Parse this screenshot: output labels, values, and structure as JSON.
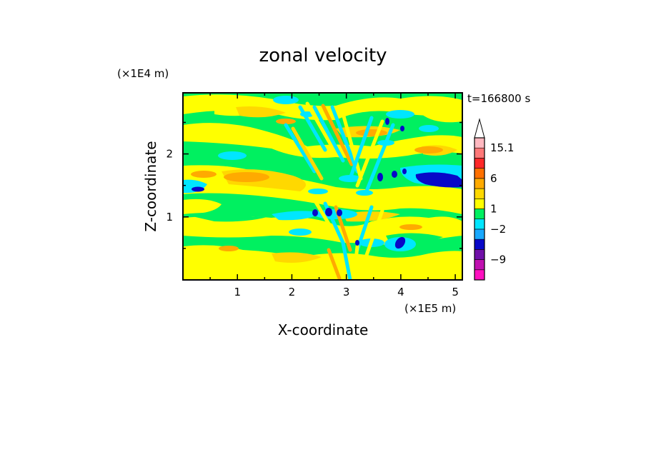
{
  "chart_data": {
    "type": "heatmap",
    "title": "zonal velocity",
    "xlabel": "X-coordinate",
    "ylabel": "Z-coordinate",
    "x_unit": "(×1E5 m)",
    "y_unit": "(×1E4 m)",
    "time_label": "t=166800 s",
    "xlim": [
      0,
      5.13
    ],
    "ylim": [
      0,
      2.97
    ],
    "x_ticks": [
      "1",
      "2",
      "3",
      "4",
      "5"
    ],
    "y_ticks": [
      "1",
      "2"
    ],
    "colorbar_labels": [
      "15.1",
      "6",
      "1",
      "−2",
      "−9"
    ],
    "colorbar_colors": [
      "#ff10c0",
      "#c010b0",
      "#7010a8",
      "#0808c8",
      "#18a8ff",
      "#00e6ff",
      "#00f060",
      "#ffff00",
      "#ffd800",
      "#ffaa00",
      "#ff7000",
      "#ff2828",
      "#ff7878",
      "#ffb8c0"
    ],
    "grid": false,
    "legend": "colorbar-right"
  }
}
